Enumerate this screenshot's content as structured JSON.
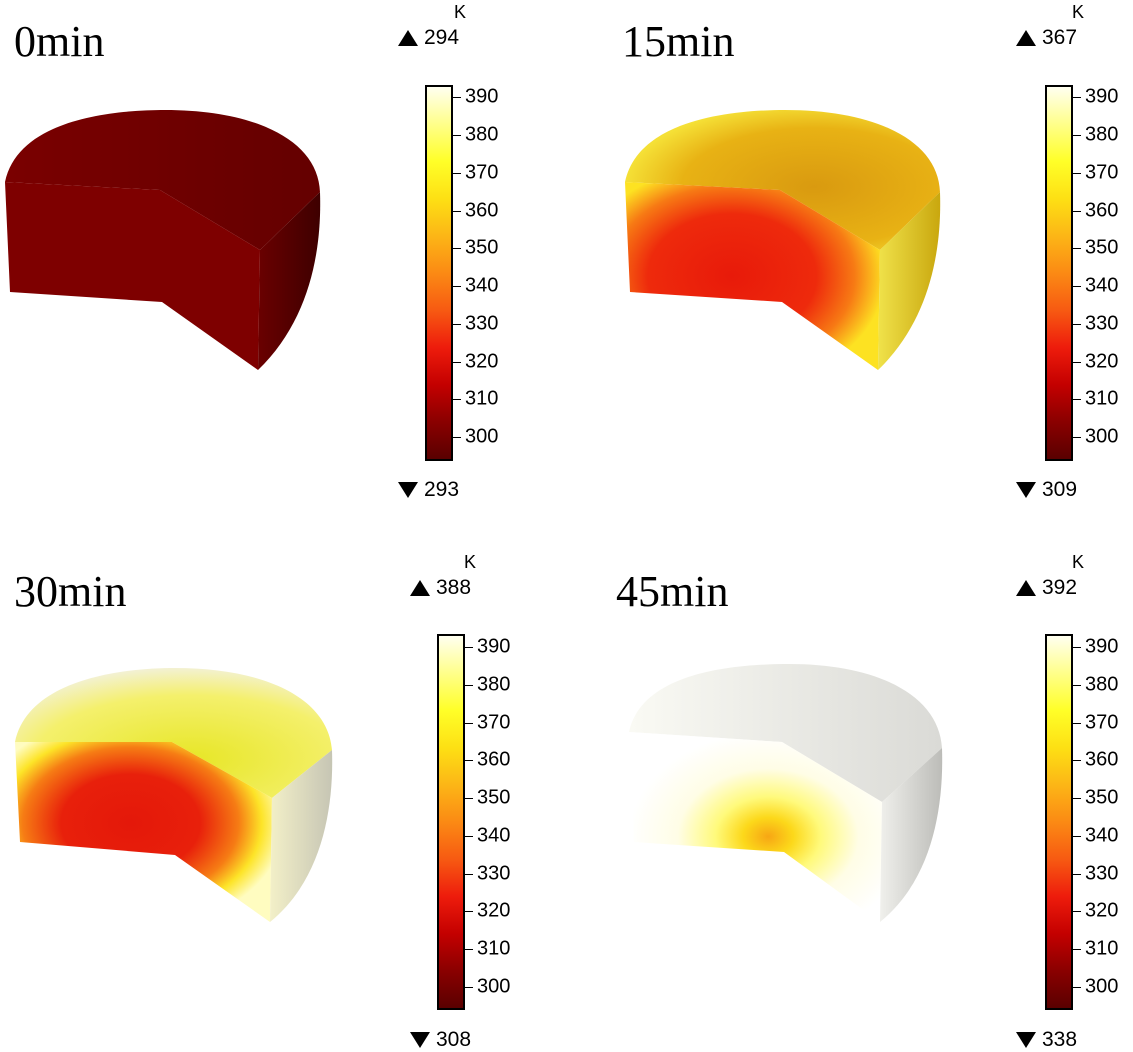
{
  "unit": "K",
  "colormap": [
    "#5a0000",
    "#8a0000",
    "#c40000",
    "#ee1c0c",
    "#f75a12",
    "#fb8a14",
    "#fcb616",
    "#fde014",
    "#ffff28",
    "#ffff8a",
    "#fffff0"
  ],
  "colorbar_ticks": [
    "390",
    "380",
    "370",
    "360",
    "350",
    "340",
    "330",
    "320",
    "310",
    "300"
  ],
  "panels": [
    {
      "title": "0min",
      "max": "294",
      "min": "293"
    },
    {
      "title": "15min",
      "max": "367",
      "min": "309"
    },
    {
      "title": "30min",
      "max": "388",
      "min": "308"
    },
    {
      "title": "45min",
      "max": "392",
      "min": "338"
    }
  ]
}
